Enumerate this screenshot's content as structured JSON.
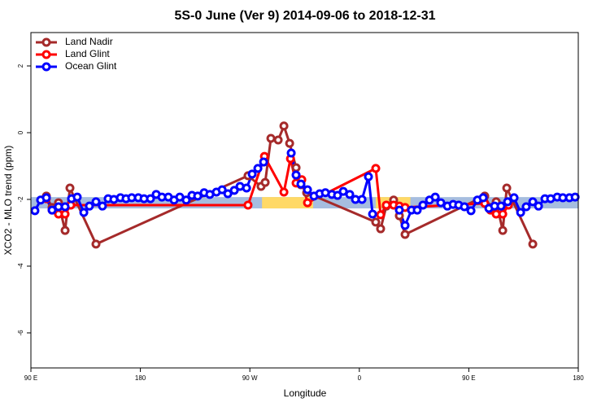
{
  "chart_data": {
    "type": "line",
    "title": "5S-0 June (Ver 9)   2014-09-06 to 2018-12-31",
    "x_label": "Longitude",
    "y_label": "XCO2 - MLO trend (ppm)",
    "xlim": [
      90,
      540
    ],
    "xticks": [
      {
        "value": 90,
        "label": "90 E"
      },
      180,
      {
        "value": 270,
        "label": "90 W"
      },
      {
        "value": 360,
        "label": "0"
      },
      {
        "value": 450,
        "label": "90 E"
      },
      {
        "value": 540,
        "label": "180"
      }
    ],
    "ylim": [
      -7.05,
      3.0
    ],
    "yticks": [
      2,
      0,
      -2,
      -4,
      -6
    ],
    "grid": false,
    "legend": "top-left",
    "bands": [
      {
        "x": [
          90,
          540
        ],
        "y": [
          -2.27,
          -1.93
        ],
        "color": "#a6bddf"
      },
      {
        "x": [
          280,
          322
        ],
        "y": [
          -2.27,
          -1.93
        ],
        "color": "#ffd966"
      },
      {
        "x": [
          373.5,
          402
        ],
        "y": [
          -2.27,
          -1.93
        ],
        "color": "#ffd966"
      }
    ],
    "series": [
      {
        "name": "Land Nadir",
        "color": "#a52a2a",
        "x": [
          102.7,
          107.4,
          112.7,
          118.1,
          122.1,
          143.5,
          268.5,
          279.2,
          282.6,
          287.3,
          293.3,
          298.0,
          302.7,
          308.0,
          312.0,
          316.7,
          373.5,
          377.5,
          382.2,
          388.2,
          392.9,
          397.6,
          463.1,
          467.8,
          472.5,
          477.9,
          481.2,
          502.6
        ],
        "values": [
          -1.9,
          -2.24,
          -2.1,
          -2.93,
          -1.66,
          -3.34,
          -1.29,
          -1.61,
          -1.49,
          -0.17,
          -0.22,
          0.2,
          -0.32,
          -1.05,
          -1.56,
          -1.8,
          -2.68,
          -2.88,
          -2.2,
          -2.02,
          -2.49,
          -3.05,
          -1.9,
          -2.24,
          -2.07,
          -2.93,
          -1.66,
          -3.34
        ]
      },
      {
        "name": "Land Glint",
        "color": "#ff0000",
        "x": [
          102.7,
          107.4,
          112.7,
          118.1,
          122.8,
          268.5,
          282.0,
          298.0,
          303.4,
          308.0,
          312.7,
          317.4,
          373.5,
          377.5,
          382.2,
          388.2,
          392.9,
          397.6,
          463.1,
          467.8,
          472.5,
          477.9,
          482.6
        ],
        "values": [
          -1.98,
          -2.32,
          -2.44,
          -2.44,
          -2.17,
          -2.17,
          -0.71,
          -1.78,
          -0.78,
          -1.51,
          -1.41,
          -2.1,
          -1.07,
          -2.46,
          -2.17,
          -2.17,
          -2.2,
          -2.24,
          -2.12,
          -2.32,
          -2.44,
          -2.44,
          -2.17
        ]
      },
      {
        "name": "Ocean Glint",
        "color": "#0000ff",
        "x": [
          93.3,
          98.0,
          102.7,
          107.4,
          112.7,
          118.1,
          123.4,
          128.1,
          133.5,
          138.1,
          143.5,
          148.8,
          153.5,
          158.2,
          163.6,
          168.2,
          172.9,
          178.3,
          183.0,
          188.3,
          193.0,
          197.7,
          203.0,
          207.7,
          212.4,
          217.7,
          222.4,
          227.1,
          232.4,
          237.1,
          242.5,
          247.2,
          251.9,
          257.2,
          261.9,
          267.3,
          271.9,
          276.6,
          281.3,
          292.0,
          304.0,
          308.0,
          312.0,
          317.4,
          322.7,
          327.4,
          332.1,
          337.4,
          342.1,
          346.8,
          352.1,
          356.8,
          362.2,
          367.5,
          370.9,
          380.0,
          392.9,
          397.6,
          402.9,
          407.6,
          412.3,
          417.7,
          422.4,
          427.0,
          432.4,
          437.1,
          441.7,
          446.4,
          451.8,
          457.1,
          461.8,
          466.5,
          471.2,
          476.5,
          481.9,
          487.2,
          492.6,
          497.2,
          502.6,
          507.3,
          512.6,
          517.3,
          522.7,
          527.3,
          532.7,
          537.4
        ],
        "values": [
          -2.34,
          -2.02,
          -1.95,
          -2.32,
          -2.22,
          -2.22,
          -1.98,
          -1.93,
          -2.39,
          -2.2,
          -2.07,
          -2.2,
          -1.98,
          -2.0,
          -1.95,
          -1.98,
          -1.95,
          -1.95,
          -1.98,
          -1.98,
          -1.85,
          -1.93,
          -1.93,
          -2.02,
          -1.93,
          -2.02,
          -1.88,
          -1.9,
          -1.8,
          -1.85,
          -1.78,
          -1.71,
          -1.83,
          -1.73,
          -1.61,
          -1.66,
          -1.24,
          -1.07,
          -0.88,
          null,
          -0.61,
          -1.27,
          -1.54,
          -1.71,
          -1.9,
          -1.83,
          -1.8,
          -1.85,
          -1.88,
          -1.76,
          -1.85,
          -2.0,
          -2.0,
          -1.32,
          -2.44,
          null,
          -2.32,
          -2.78,
          -2.32,
          -2.32,
          -2.17,
          -2.02,
          -1.93,
          -2.1,
          -2.2,
          -2.15,
          -2.17,
          -2.22,
          -2.34,
          -2.02,
          -1.95,
          -2.27,
          -2.2,
          -2.2,
          -2.07,
          -1.95,
          -2.39,
          -2.22,
          -2.07,
          -2.2,
          -1.98,
          -1.98,
          -1.93,
          -1.95,
          -1.95,
          -1.93
        ]
      }
    ]
  }
}
